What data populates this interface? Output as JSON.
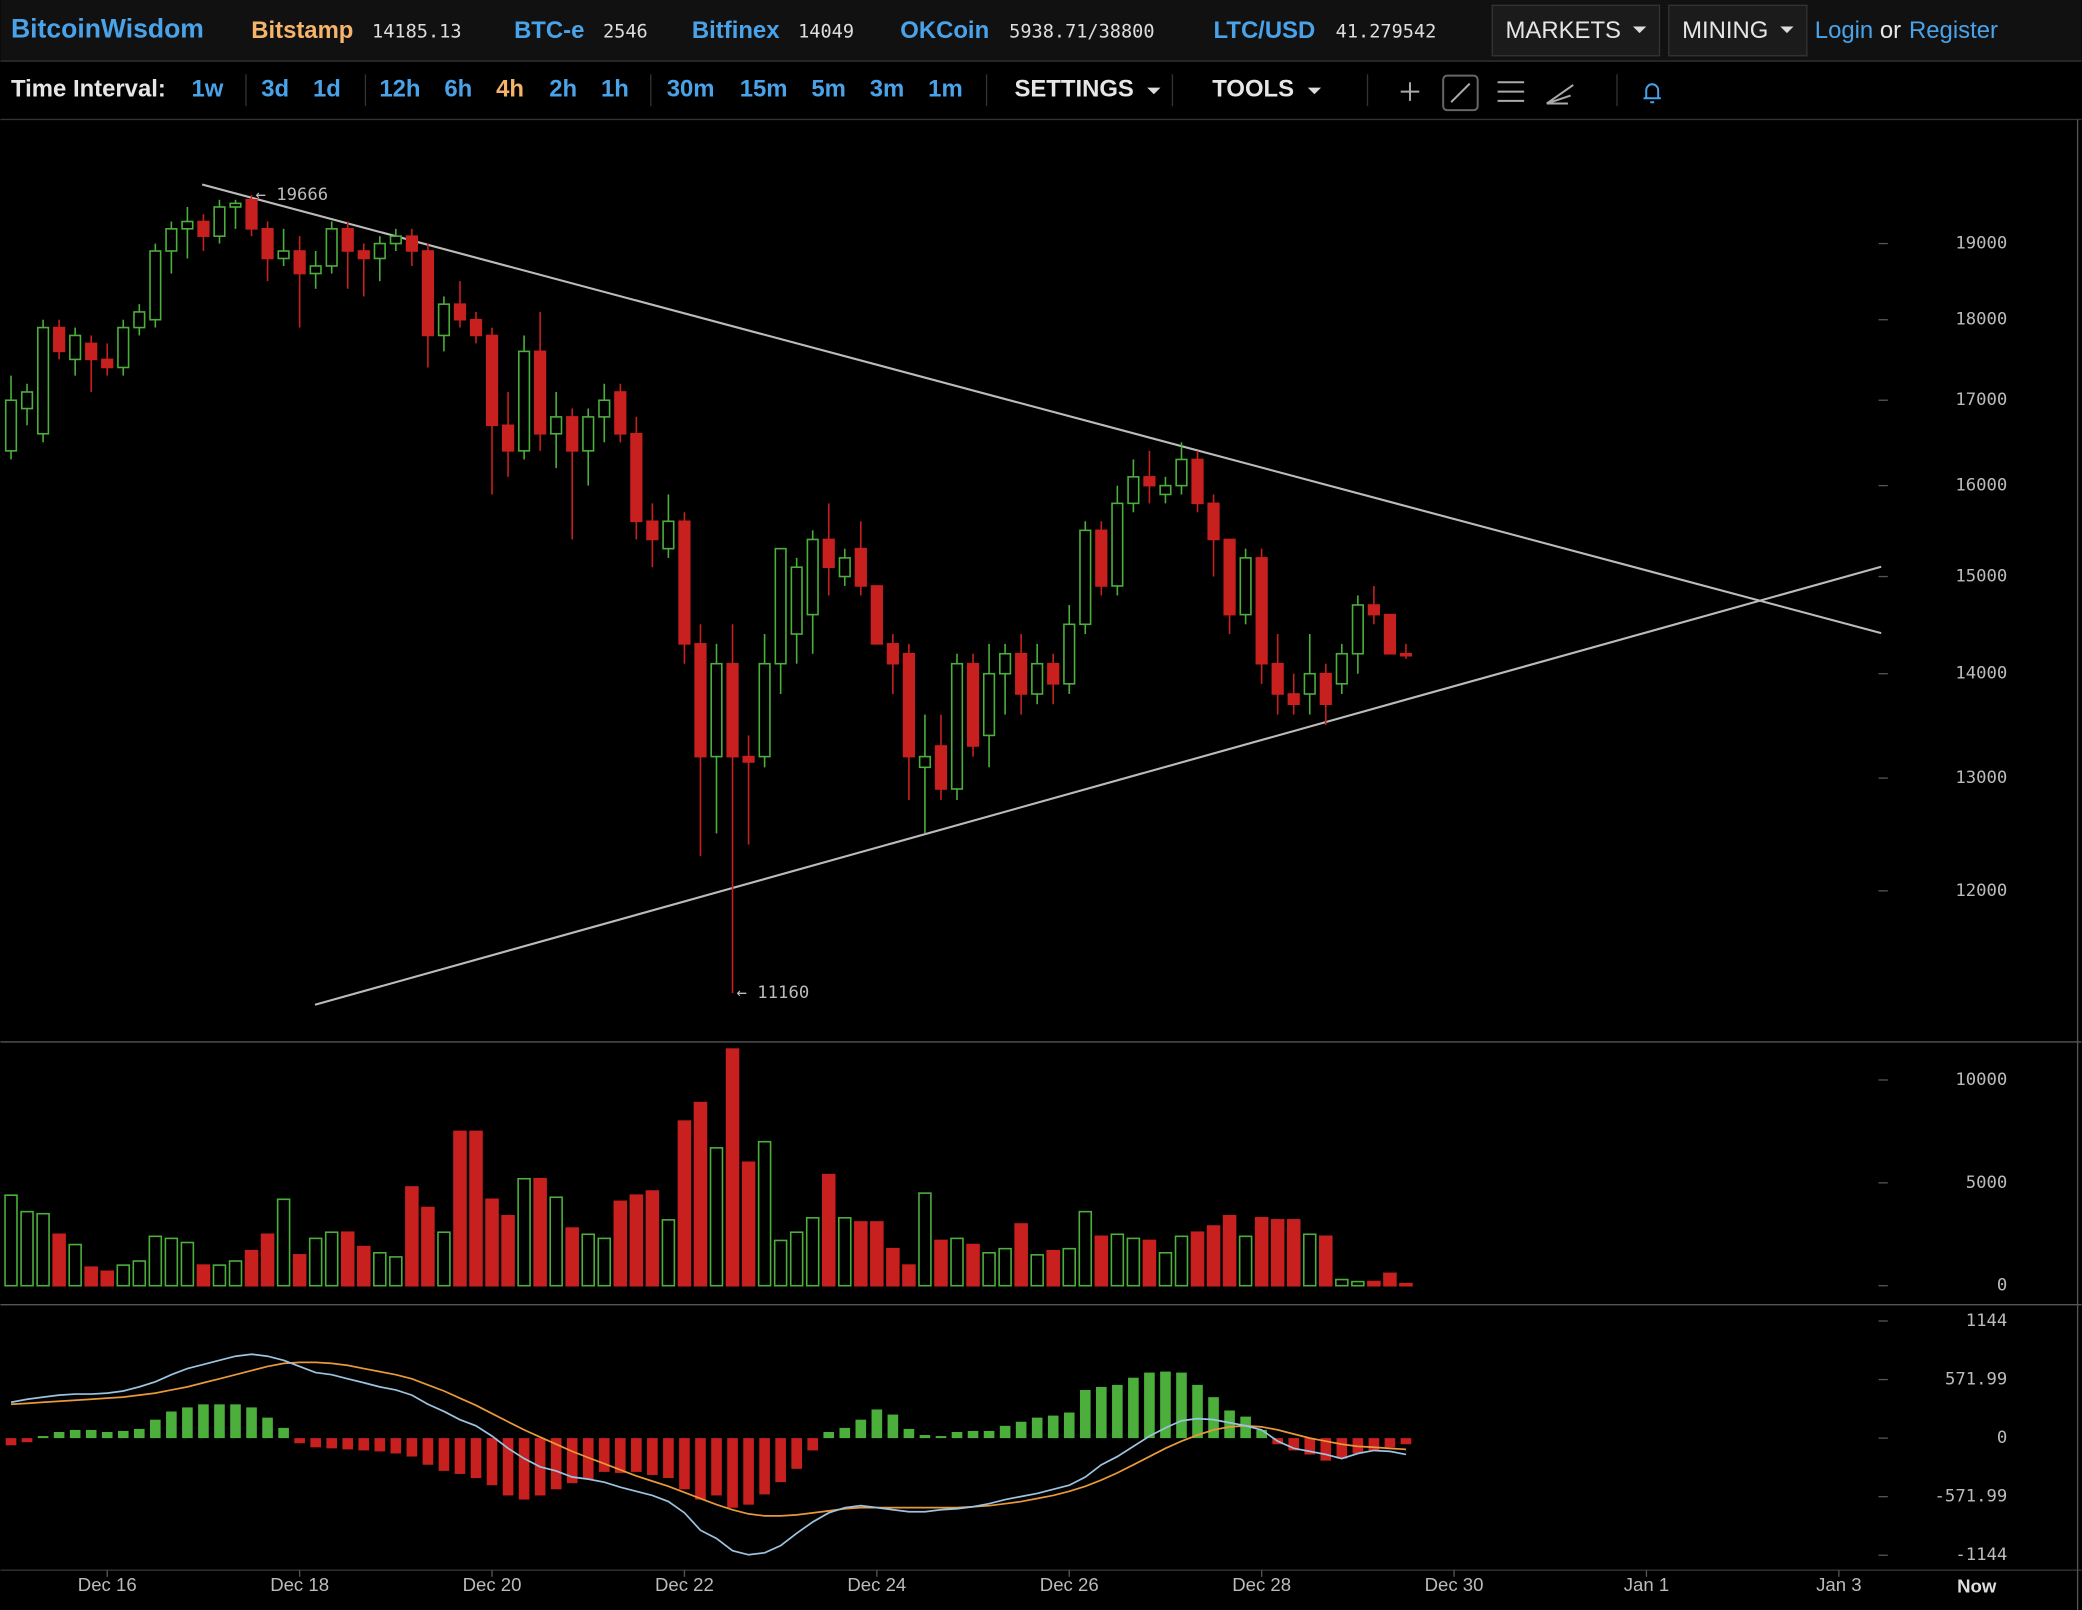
{
  "header": {
    "logo": "BitcoinWisdom",
    "tickers": [
      {
        "name": "Bitstamp",
        "value": "14185.13"
      },
      {
        "name": "BTC-e",
        "value": "2546"
      },
      {
        "name": "Bitfinex",
        "value": "14049"
      },
      {
        "name": "OKCoin",
        "value": "5938.71/38800"
      },
      {
        "name": "LTC/USD",
        "value": "41.279542"
      }
    ],
    "menus": [
      "MARKETS",
      "MINING"
    ],
    "login": "Login",
    "or": "or",
    "register": "Register"
  },
  "toolbar": {
    "label": "Time Interval:",
    "intervals": [
      "1w",
      "3d",
      "1d",
      "12h",
      "6h",
      "4h",
      "2h",
      "1h",
      "30m",
      "15m",
      "5m",
      "3m",
      "1m"
    ],
    "active_index": 5,
    "settings": "SETTINGS",
    "tools": "TOOLS"
  },
  "chart_data": [
    {
      "type": "candlestick",
      "log_scale": true,
      "up_color": "#4caf3c",
      "down_color": "#c8201e",
      "ylim": [
        10800,
        20750
      ],
      "yticks": [
        12000,
        13000,
        14000,
        15000,
        16000,
        17000,
        18000,
        19000
      ],
      "open": [
        16400,
        16900,
        16600,
        17900,
        17500,
        17700,
        17500,
        17400,
        17900,
        18000,
        18900,
        19200,
        19300,
        19100,
        19500,
        19600,
        19200,
        18800,
        18900,
        18600,
        18700,
        19200,
        18900,
        18800,
        19000,
        19100,
        18900,
        17800,
        18200,
        18000,
        17800,
        16700,
        16400,
        17600,
        16600,
        16800,
        16400,
        16800,
        17100,
        16600,
        15600,
        15300,
        15600,
        14300,
        13200,
        14100,
        13200,
        13200,
        14100,
        14400,
        14600,
        15400,
        15000,
        15300,
        14900,
        14300,
        14200,
        13100,
        13300,
        12900,
        14100,
        13400,
        14000,
        14200,
        13800,
        14100,
        13900,
        14500,
        15500,
        14900,
        15800,
        16100,
        15900,
        16000,
        16300,
        15800,
        15400,
        14600,
        15200,
        14100,
        13800,
        13800,
        14000,
        13900,
        14200,
        14700,
        14600,
        14200
      ],
      "high": [
        17300,
        17200,
        18000,
        18000,
        17900,
        17800,
        17700,
        18000,
        18200,
        19000,
        19300,
        19500,
        19400,
        19600,
        19600,
        19666,
        19300,
        19200,
        19100,
        18900,
        19300,
        19300,
        19000,
        19100,
        19200,
        19200,
        19000,
        18300,
        18500,
        18100,
        17900,
        17100,
        17800,
        18100,
        17100,
        16900,
        16900,
        17200,
        17200,
        16800,
        15800,
        15900,
        15700,
        14500,
        14300,
        14500,
        13400,
        14400,
        15300,
        15200,
        15500,
        15800,
        15300,
        15600,
        14900,
        14400,
        14300,
        13600,
        13600,
        14200,
        14200,
        14300,
        14300,
        14400,
        14300,
        14200,
        14700,
        15600,
        15600,
        16000,
        16300,
        16400,
        16100,
        16500,
        16400,
        15900,
        15400,
        15300,
        15300,
        14400,
        14000,
        14400,
        14100,
        14300,
        14800,
        14900,
        14600,
        14300
      ],
      "low": [
        16300,
        16700,
        16500,
        17500,
        17300,
        17100,
        17300,
        17300,
        17800,
        17900,
        18600,
        18800,
        18900,
        19000,
        19200,
        19100,
        18500,
        18700,
        17900,
        18400,
        18600,
        18400,
        18300,
        18500,
        18900,
        18700,
        17400,
        17600,
        17900,
        17700,
        15900,
        16100,
        16300,
        16400,
        16200,
        15400,
        16000,
        16500,
        16500,
        15400,
        15100,
        15200,
        14100,
        12300,
        12500,
        11160,
        12400,
        13100,
        13800,
        14100,
        14200,
        14800,
        14900,
        14800,
        14300,
        13800,
        12800,
        12500,
        12800,
        12800,
        13200,
        13100,
        13600,
        13600,
        13700,
        13700,
        13800,
        14400,
        14800,
        14800,
        15700,
        15800,
        15800,
        15900,
        15700,
        15000,
        14400,
        14500,
        13900,
        13600,
        13600,
        13600,
        13500,
        13800,
        14000,
        14500,
        14200,
        14150
      ],
      "close": [
        17000,
        17100,
        17900,
        17600,
        17800,
        17500,
        17400,
        17900,
        18100,
        18900,
        19200,
        19300,
        19100,
        19500,
        19550,
        19200,
        18800,
        18900,
        18600,
        18700,
        19200,
        18900,
        18800,
        19000,
        19100,
        18900,
        17800,
        18200,
        18000,
        17800,
        16700,
        16400,
        17600,
        16600,
        16800,
        16400,
        16800,
        17000,
        16600,
        15600,
        15400,
        15600,
        14300,
        13200,
        14100,
        13200,
        13150,
        14100,
        15300,
        15100,
        15400,
        15100,
        15200,
        14900,
        14300,
        14100,
        13200,
        13200,
        12900,
        14100,
        13300,
        14000,
        14200,
        13800,
        14100,
        13900,
        14500,
        15500,
        14900,
        15800,
        16100,
        16000,
        16000,
        16300,
        15800,
        15400,
        14600,
        15200,
        14100,
        13800,
        13700,
        14000,
        13700,
        14200,
        14700,
        14600,
        14200,
        14180
      ],
      "annotations": [
        {
          "label": "← 19666",
          "value": 19666
        },
        {
          "label": "← 11160",
          "value": 11160
        }
      ]
    },
    {
      "type": "volume",
      "ylim": [
        -860,
        11850
      ],
      "yticks": [
        0,
        5000,
        10000
      ],
      "values": [
        4400,
        3600,
        3500,
        2500,
        2000,
        900,
        700,
        1000,
        1200,
        2400,
        2300,
        2100,
        1000,
        1000,
        1200,
        1700,
        2500,
        4200,
        1500,
        2300,
        2600,
        2600,
        1900,
        1600,
        1400,
        4800,
        3800,
        2600,
        7500,
        7500,
        4200,
        3400,
        5200,
        5200,
        4300,
        2800,
        2500,
        2300,
        4100,
        4400,
        4600,
        3200,
        8000,
        8900,
        6700,
        11500,
        6000,
        7000,
        2200,
        2600,
        3300,
        5400,
        3300,
        3100,
        3100,
        1800,
        1000,
        4500,
        2200,
        2300,
        2000,
        1600,
        1800,
        3000,
        1500,
        1700,
        1800,
        3600,
        2400,
        2500,
        2300,
        2200,
        1600,
        2400,
        2600,
        2900,
        3400,
        2400,
        3300,
        3200,
        3200,
        2500,
        2400,
        300,
        200,
        200,
        600,
        100
      ]
    },
    {
      "type": "macd",
      "ylim": [
        -1290,
        1290
      ],
      "yticks": [
        -1144,
        -571.99,
        0,
        571.99,
        1144
      ],
      "macd_color": "#9cc3e0",
      "signal_color": "#e8993a",
      "histogram": [
        -70,
        -40,
        20,
        60,
        80,
        80,
        60,
        70,
        90,
        180,
        260,
        300,
        330,
        330,
        330,
        300,
        200,
        100,
        -50,
        -90,
        -100,
        -110,
        -120,
        -130,
        -150,
        -180,
        -260,
        -320,
        -350,
        -390,
        -460,
        -560,
        -600,
        -560,
        -500,
        -440,
        -400,
        -330,
        -340,
        -330,
        -360,
        -390,
        -500,
        -600,
        -560,
        -680,
        -650,
        -550,
        -430,
        -300,
        -120,
        60,
        100,
        180,
        280,
        230,
        90,
        30,
        20,
        60,
        70,
        70,
        120,
        160,
        200,
        220,
        250,
        470,
        500,
        520,
        590,
        640,
        650,
        640,
        520,
        400,
        270,
        210,
        80,
        -60,
        -120,
        -160,
        -220,
        -200,
        -150,
        -120,
        -90,
        -60
      ],
      "macd": [
        350,
        380,
        400,
        420,
        430,
        430,
        440,
        460,
        500,
        550,
        620,
        680,
        720,
        760,
        800,
        820,
        800,
        760,
        700,
        640,
        620,
        580,
        540,
        500,
        470,
        420,
        330,
        260,
        180,
        120,
        20,
        -100,
        -200,
        -280,
        -320,
        -380,
        -400,
        -430,
        -480,
        -520,
        -560,
        -620,
        -730,
        -900,
        -980,
        -1100,
        -1140,
        -1120,
        -1050,
        -930,
        -820,
        -730,
        -680,
        -660,
        -680,
        -700,
        -720,
        -720,
        -700,
        -690,
        -670,
        -640,
        -600,
        -570,
        -540,
        -500,
        -460,
        -380,
        -260,
        -180,
        -80,
        20,
        100,
        170,
        190,
        180,
        150,
        120,
        80,
        -30,
        -100,
        -130,
        -160,
        -200,
        -150,
        -120,
        -130,
        -160
      ],
      "signal": [
        330,
        340,
        350,
        360,
        370,
        380,
        390,
        400,
        420,
        440,
        470,
        500,
        540,
        580,
        620,
        660,
        700,
        730,
        740,
        740,
        730,
        710,
        680,
        650,
        620,
        580,
        520,
        460,
        390,
        320,
        240,
        160,
        80,
        10,
        -60,
        -130,
        -190,
        -250,
        -310,
        -370,
        -420,
        -470,
        -530,
        -590,
        -650,
        -700,
        -740,
        -760,
        -760,
        -750,
        -730,
        -710,
        -690,
        -680,
        -680,
        -680,
        -680,
        -680,
        -680,
        -680,
        -670,
        -660,
        -640,
        -620,
        -590,
        -560,
        -520,
        -470,
        -410,
        -340,
        -260,
        -180,
        -100,
        -30,
        30,
        80,
        110,
        120,
        110,
        80,
        40,
        0,
        -30,
        -60,
        -80,
        -90,
        -100,
        -110
      ],
      "xtick_labels": [
        "Dec 16",
        "Dec 18",
        "Dec 20",
        "Dec 22",
        "Dec 24",
        "Dec 26",
        "Dec 28",
        "Dec 30",
        "Jan 1",
        "Jan 3"
      ],
      "now_label": "Now"
    }
  ]
}
